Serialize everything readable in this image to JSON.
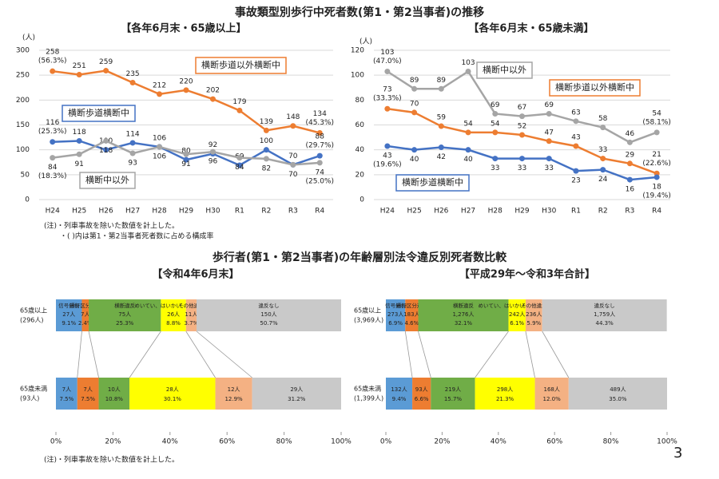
{
  "title": "事故類型別歩行中死者数(第1・第2当事者)の推移",
  "title2": "歩行者(第1・第2当事者)の年齢層別法令違反別死者数比較",
  "notes_top": [
    "(注)・列車事故を除いた数値を計上した。",
    "・( )内は第1・第2当事者死者数に占める構成率"
  ],
  "note_bottom": "(注)・列車事故を除いた数値を計上した。",
  "page_number": "3",
  "chart_data": [
    {
      "type": "line",
      "subtitle": "【各年6月末・65歳以上】",
      "y_unit": "(人)",
      "categories": [
        "H24",
        "H25",
        "H26",
        "H27",
        "H28",
        "H29",
        "H30",
        "R1",
        "R2",
        "R3",
        "R4"
      ],
      "ylim": [
        0,
        300
      ],
      "yticks": [
        0,
        50,
        100,
        150,
        200,
        250,
        300
      ],
      "grid": true,
      "series": [
        {
          "name": "横断歩道以外横断中",
          "color": "#ed7d31",
          "values": [
            258,
            251,
            259,
            235,
            212,
            220,
            202,
            179,
            139,
            148,
            134
          ],
          "share_labels": [
            "(56.3%)",
            null,
            null,
            null,
            null,
            null,
            null,
            null,
            null,
            null,
            "(45.3%)"
          ]
        },
        {
          "name": "横断歩道横断中",
          "color": "#4472c4",
          "values": [
            116,
            118,
            100,
            114,
            106,
            80,
            92,
            69,
            100,
            70,
            88
          ],
          "share_labels": [
            "(25.3%)",
            null,
            null,
            null,
            null,
            null,
            null,
            null,
            null,
            null,
            "(29.7%)"
          ]
        },
        {
          "name": "横断中以外",
          "color": "#a5a5a5",
          "values": [
            84,
            91,
            118,
            93,
            106,
            91,
            96,
            84,
            82,
            70,
            74
          ],
          "share_labels": [
            "(18.3%)",
            null,
            null,
            null,
            null,
            null,
            null,
            null,
            null,
            null,
            "(25.0%)"
          ]
        }
      ]
    },
    {
      "type": "line",
      "subtitle": "【各年6月末・65歳未満】",
      "y_unit": "(人)",
      "categories": [
        "H24",
        "H25",
        "H26",
        "H27",
        "H28",
        "H29",
        "H30",
        "R1",
        "R2",
        "R3",
        "R4"
      ],
      "ylim": [
        0,
        120
      ],
      "yticks": [
        0,
        20,
        40,
        60,
        80,
        100,
        120
      ],
      "grid": true,
      "series": [
        {
          "name": "横断中以外",
          "color": "#a5a5a5",
          "values": [
            103,
            89,
            89,
            103,
            69,
            67,
            69,
            63,
            58,
            46,
            54
          ],
          "share_labels": [
            "(47.0%)",
            null,
            null,
            null,
            null,
            null,
            null,
            null,
            null,
            null,
            "(58.1%)"
          ]
        },
        {
          "name": "横断歩道以外横断中",
          "color": "#ed7d31",
          "values": [
            73,
            70,
            59,
            54,
            54,
            52,
            47,
            43,
            33,
            29,
            21
          ],
          "share_labels": [
            "(33.3%)",
            null,
            null,
            null,
            null,
            null,
            null,
            null,
            null,
            null,
            "(22.6%)"
          ]
        },
        {
          "name": "横断歩道横断中",
          "color": "#4472c4",
          "values": [
            43,
            40,
            42,
            40,
            33,
            33,
            33,
            23,
            24,
            16,
            18
          ],
          "share_labels": [
            "(19.6%)",
            null,
            null,
            null,
            null,
            null,
            null,
            null,
            null,
            null,
            "(19.4%)"
          ]
        }
      ]
    },
    {
      "type": "stacked_hbar",
      "subtitle": "【令和4年6月末】",
      "categories": [
        "65歳以上",
        "65歳未満"
      ],
      "category_totals": [
        "(296人)",
        "(93人)"
      ],
      "xlim": [
        0,
        100
      ],
      "xticks": [
        {
          "value": 0,
          "label": "0%"
        },
        {
          "value": 20,
          "label": "20%"
        },
        {
          "value": 40,
          "label": "40%"
        },
        {
          "value": 60,
          "label": "60%"
        },
        {
          "value": 80,
          "label": "80%"
        },
        {
          "value": 100,
          "label": "100%"
        }
      ],
      "grid": false,
      "series": [
        {
          "name": "信号無視",
          "color": "#5b9bd5",
          "values": [
            9.1,
            7.5
          ],
          "value_labels": [
            "9.1%",
            "7.5%"
          ],
          "count_labels": [
            "27人",
            "7人"
          ]
        },
        {
          "name": "通行区分違反",
          "color": "#ed7d31",
          "values": [
            2.4,
            7.5
          ],
          "value_labels": [
            "2.4%",
            "7.5%"
          ],
          "count_labels": [
            "7人",
            "7人"
          ]
        },
        {
          "name": "横断違反",
          "color": "#70ad47",
          "values": [
            25.3,
            10.8
          ],
          "value_labels": [
            "25.3%",
            "10.8%"
          ],
          "count_labels": [
            "75人",
            "10人"
          ]
        },
        {
          "name": "めいてい、はいかい、寝そべり等",
          "color": "#ffff00",
          "values": [
            8.8,
            30.1
          ],
          "value_labels": [
            "8.8%",
            "30.1%"
          ],
          "count_labels": [
            "26人",
            "28人"
          ]
        },
        {
          "name": "その他違反",
          "color": "#f4b183",
          "values": [
            3.7,
            12.9
          ],
          "value_labels": [
            "3.7%",
            "12.9%"
          ],
          "count_labels": [
            "11人",
            "12人"
          ]
        },
        {
          "name": "違反なし",
          "color": "#c9c9c9",
          "values": [
            50.7,
            31.2
          ],
          "value_labels": [
            "50.7%",
            "31.2%"
          ],
          "count_labels": [
            "150人",
            "29人"
          ]
        }
      ]
    },
    {
      "type": "stacked_hbar",
      "subtitle": "【平成29年～令和3年合計】",
      "categories": [
        "65歳以上",
        "65歳未満"
      ],
      "category_totals": [
        "(3,969人)",
        "(1,399人)"
      ],
      "xlim": [
        0,
        100
      ],
      "xticks": [
        {
          "value": 0,
          "label": "0%"
        },
        {
          "value": 20,
          "label": "20%"
        },
        {
          "value": 40,
          "label": "40%"
        },
        {
          "value": 60,
          "label": "60%"
        },
        {
          "value": 80,
          "label": "80%"
        },
        {
          "value": 100,
          "label": "100%"
        }
      ],
      "grid": false,
      "series": [
        {
          "name": "信号無視",
          "color": "#5b9bd5",
          "values": [
            6.9,
            9.4
          ],
          "value_labels": [
            "6.9%",
            "9.4%"
          ],
          "count_labels": [
            "273人",
            "132人"
          ]
        },
        {
          "name": "通行区分違反",
          "color": "#ed7d31",
          "values": [
            4.6,
            6.6
          ],
          "value_labels": [
            "4.6%",
            "6.6%"
          ],
          "count_labels": [
            "183人",
            "93人"
          ]
        },
        {
          "name": "横断違反",
          "color": "#70ad47",
          "values": [
            32.1,
            15.7
          ],
          "value_labels": [
            "32.1%",
            "15.7%"
          ],
          "count_labels": [
            "1,276人",
            "219人"
          ]
        },
        {
          "name": "めいてい、はいかい、寝そべり等",
          "color": "#ffff00",
          "values": [
            6.1,
            21.3
          ],
          "value_labels": [
            "6.1%",
            "21.3%"
          ],
          "count_labels": [
            "242人",
            "298人"
          ]
        },
        {
          "name": "その他違反",
          "color": "#f4b183",
          "values": [
            5.9,
            12.0
          ],
          "value_labels": [
            "5.9%",
            "12.0%"
          ],
          "count_labels": [
            "236人",
            "168人"
          ]
        },
        {
          "name": "違反なし",
          "color": "#c9c9c9",
          "values": [
            44.3,
            35.0
          ],
          "value_labels": [
            "44.3%",
            "35.0%"
          ],
          "count_labels": [
            "1,759人",
            "489人"
          ]
        }
      ]
    }
  ]
}
